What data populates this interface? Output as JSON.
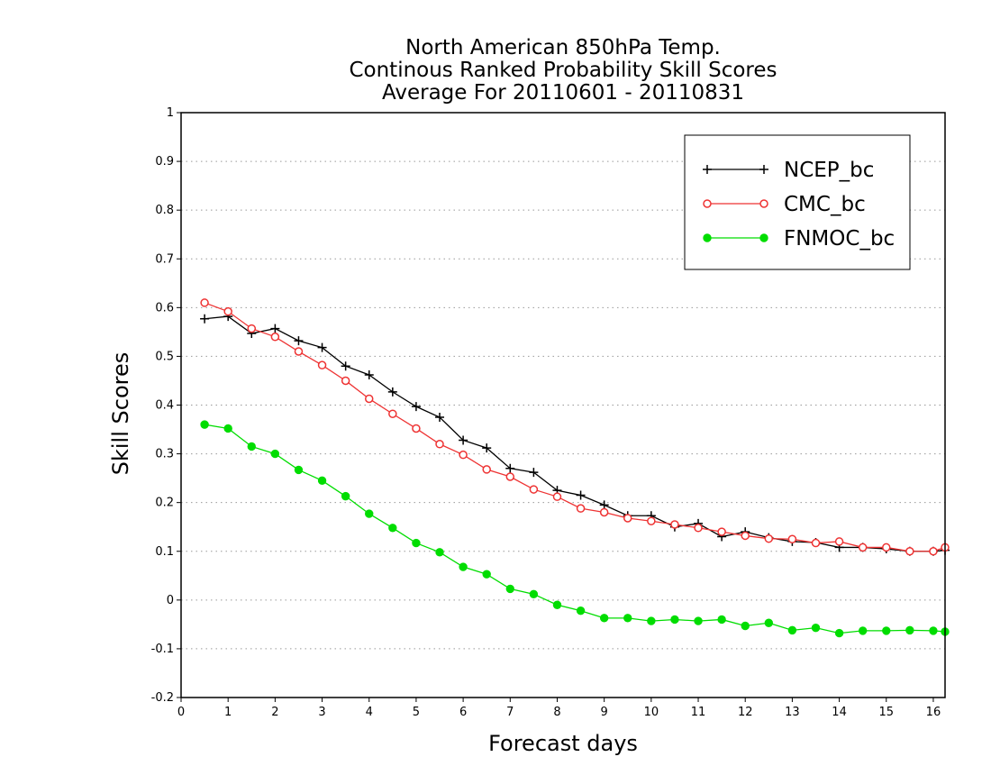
{
  "chart_data": {
    "type": "line",
    "title_lines": [
      "North American 850hPa Temp.",
      "Continous Ranked Probability Skill Scores",
      "Average For 20110601 - 20110831"
    ],
    "xlabel": "Forecast days",
    "ylabel": "Skill Scores",
    "xlim": [
      0,
      16.25
    ],
    "ylim": [
      -0.2,
      1
    ],
    "xticks": [
      0,
      1,
      2,
      3,
      4,
      5,
      6,
      7,
      8,
      9,
      10,
      11,
      12,
      13,
      14,
      15,
      16
    ],
    "yticks": [
      -0.2,
      -0.1,
      0,
      0.1,
      0.2,
      0.3,
      0.4,
      0.5,
      0.6,
      0.7,
      0.8,
      0.9,
      1
    ],
    "ytick_labels": [
      "-0.2",
      "-0.1",
      "0",
      "0.1",
      "0.2",
      "0.3",
      "0.4",
      "0.5",
      "0.6",
      "0.7",
      "0.8",
      "0.9",
      "1"
    ],
    "grid": "horizontal-dotted",
    "legend_position": "top-right",
    "x": [
      0.5,
      1,
      1.5,
      2,
      2.5,
      3,
      3.5,
      4,
      4.5,
      5,
      5.5,
      6,
      6.5,
      7,
      7.5,
      8,
      8.5,
      9,
      9.5,
      10,
      10.5,
      11,
      11.5,
      12,
      12.5,
      13,
      13.5,
      14,
      14.5,
      15,
      15.5,
      16,
      16.25
    ],
    "series": [
      {
        "name": "NCEP_bc",
        "color": "#000000",
        "marker": "plus",
        "values": [
          0.577,
          0.582,
          0.547,
          0.557,
          0.532,
          0.518,
          0.48,
          0.462,
          0.427,
          0.397,
          0.375,
          0.328,
          0.312,
          0.27,
          0.262,
          0.225,
          0.215,
          0.195,
          0.173,
          0.173,
          0.15,
          0.157,
          0.13,
          0.14,
          0.128,
          0.12,
          0.118,
          0.108,
          0.108,
          0.105,
          0.1,
          0.1,
          0.102
        ]
      },
      {
        "name": "CMC_bc",
        "color": "#ee3333",
        "marker": "open-circle",
        "values": [
          0.61,
          0.592,
          0.557,
          0.54,
          0.51,
          0.482,
          0.45,
          0.413,
          0.382,
          0.352,
          0.32,
          0.298,
          0.268,
          0.253,
          0.227,
          0.212,
          0.188,
          0.18,
          0.168,
          0.162,
          0.155,
          0.148,
          0.14,
          0.132,
          0.126,
          0.125,
          0.117,
          0.12,
          0.108,
          0.108,
          0.1,
          0.1,
          0.108
        ]
      },
      {
        "name": "FNMOC_bc",
        "color": "#00dd00",
        "marker": "filled-circle",
        "values": [
          0.36,
          0.352,
          0.315,
          0.3,
          0.267,
          0.245,
          0.213,
          0.177,
          0.148,
          0.117,
          0.098,
          0.068,
          0.053,
          0.023,
          0.012,
          -0.01,
          -0.022,
          -0.037,
          -0.037,
          -0.043,
          -0.04,
          -0.043,
          -0.04,
          -0.053,
          -0.047,
          -0.062,
          -0.057,
          -0.068,
          -0.063,
          -0.063,
          -0.062,
          -0.063,
          -0.065
        ]
      }
    ]
  }
}
